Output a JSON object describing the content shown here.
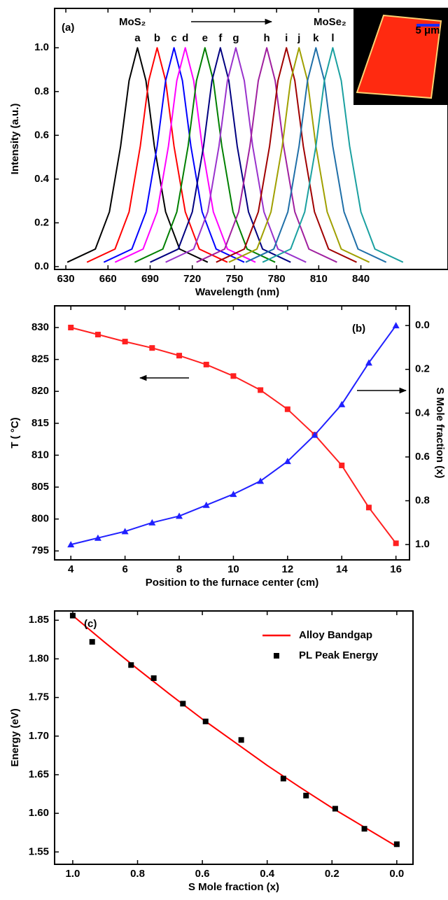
{
  "chart_data": [
    {
      "type": "line",
      "xlabel": "Wavelength (nm)",
      "ylabel": "Intensity (a.u.)",
      "xlim": [
        622,
        902
      ],
      "xticks": [
        630,
        660,
        690,
        720,
        750,
        780,
        810,
        840
      ],
      "ylim": [
        -0.013,
        1.18
      ],
      "yticks": [
        {
          "value": 0,
          "label": "0.0"
        },
        0.2,
        0.4,
        0.6,
        0.8,
        {
          "value": 1,
          "label": "1.0"
        }
      ],
      "annotations": [
        "(a)",
        "MoS₂",
        "MoSe₂"
      ],
      "inset_label": "5 μm",
      "series": [
        {
          "name": "a",
          "color": "#000000",
          "x": [
            631,
            651,
            661,
            669,
            675,
            681,
            687,
            693,
            701,
            711,
            731
          ],
          "values": [
            0.02,
            0.08,
            0.25,
            0.55,
            0.85,
            1.0,
            0.85,
            0.55,
            0.25,
            0.08,
            0.02
          ]
        },
        {
          "name": "b",
          "color": "#ff0000",
          "x": [
            645,
            665,
            675,
            683,
            689,
            695,
            701,
            707,
            715,
            725,
            745
          ],
          "values": [
            0.02,
            0.08,
            0.25,
            0.55,
            0.85,
            1.0,
            0.85,
            0.55,
            0.25,
            0.08,
            0.02
          ]
        },
        {
          "name": "c",
          "color": "#0000ff",
          "x": [
            657,
            677,
            687,
            695,
            701,
            707,
            713,
            719,
            727,
            737,
            757
          ],
          "values": [
            0.02,
            0.08,
            0.25,
            0.55,
            0.85,
            1.0,
            0.85,
            0.55,
            0.25,
            0.08,
            0.02
          ]
        },
        {
          "name": "d",
          "color": "#ff00ff",
          "x": [
            665,
            685,
            695,
            703,
            709,
            715,
            721,
            727,
            735,
            745,
            765
          ],
          "values": [
            0.02,
            0.08,
            0.25,
            0.55,
            0.85,
            1.0,
            0.85,
            0.55,
            0.25,
            0.08,
            0.02
          ]
        },
        {
          "name": "e",
          "color": "#008000",
          "x": [
            679,
            699,
            709,
            717,
            723,
            729,
            735,
            741,
            749,
            759,
            779
          ],
          "values": [
            0.02,
            0.08,
            0.25,
            0.55,
            0.85,
            1.0,
            0.85,
            0.55,
            0.25,
            0.08,
            0.02
          ]
        },
        {
          "name": "f",
          "color": "#000080",
          "x": [
            690,
            710,
            720,
            728,
            734,
            740,
            746,
            752,
            760,
            770,
            790
          ],
          "values": [
            0.02,
            0.08,
            0.25,
            0.55,
            0.85,
            1.0,
            0.85,
            0.55,
            0.25,
            0.08,
            0.02
          ]
        },
        {
          "name": "g",
          "color": "#9932cc",
          "x": [
            701,
            721,
            731,
            739,
            745,
            751,
            757,
            763,
            771,
            781,
            801
          ],
          "values": [
            0.02,
            0.08,
            0.25,
            0.55,
            0.85,
            1.0,
            0.85,
            0.55,
            0.25,
            0.08,
            0.02
          ]
        },
        {
          "name": "h",
          "color": "#a0209f",
          "x": [
            723,
            743,
            753,
            761,
            767,
            773,
            779,
            785,
            793,
            803,
            823
          ],
          "values": [
            0.02,
            0.08,
            0.25,
            0.55,
            0.85,
            1.0,
            0.85,
            0.55,
            0.25,
            0.08,
            0.02
          ]
        },
        {
          "name": "i",
          "color": "#a00000",
          "x": [
            737,
            757,
            767,
            775,
            781,
            787,
            793,
            799,
            807,
            817,
            837
          ],
          "values": [
            0.02,
            0.08,
            0.25,
            0.55,
            0.85,
            1.0,
            0.85,
            0.55,
            0.25,
            0.08,
            0.02
          ]
        },
        {
          "name": "j",
          "color": "#a0a000",
          "x": [
            746,
            766,
            776,
            784,
            790,
            796,
            802,
            808,
            816,
            826,
            846
          ],
          "values": [
            0.02,
            0.08,
            0.25,
            0.55,
            0.85,
            1.0,
            0.85,
            0.55,
            0.25,
            0.08,
            0.02
          ]
        },
        {
          "name": "k",
          "color": "#1f6fa8",
          "x": [
            758,
            778,
            788,
            796,
            802,
            808,
            814,
            820,
            828,
            838,
            858
          ],
          "values": [
            0.02,
            0.08,
            0.25,
            0.55,
            0.85,
            1.0,
            0.85,
            0.55,
            0.25,
            0.08,
            0.02
          ]
        },
        {
          "name": "l",
          "color": "#1aa0a0",
          "x": [
            770,
            790,
            800,
            808,
            814,
            820,
            826,
            832,
            840,
            850,
            870
          ],
          "values": [
            0.02,
            0.08,
            0.25,
            0.55,
            0.85,
            1.0,
            0.85,
            0.55,
            0.25,
            0.08,
            0.02
          ]
        }
      ]
    },
    {
      "type": "line",
      "xlabel": "Position to the furnace center (cm)",
      "ylabel": "T ( °C)",
      "y2label": "S Mole fraction (x)",
      "x": [
        4,
        5,
        6,
        7,
        8,
        9,
        10,
        11,
        12,
        13,
        14,
        15,
        16
      ],
      "xlim": [
        3.4,
        16.5
      ],
      "xticks": [
        4,
        6,
        8,
        10,
        12,
        14,
        16
      ],
      "ylim": [
        793.6,
        833.4
      ],
      "yticks": [
        795,
        800,
        805,
        810,
        815,
        820,
        825,
        830
      ],
      "y2lim": [
        1.07,
        -0.09
      ],
      "y2ticks": [
        {
          "value": 0,
          "label": "0.0"
        },
        0.2,
        0.4,
        0.6,
        0.8,
        {
          "value": 1,
          "label": "1.0"
        }
      ],
      "annotations": [
        "(b)"
      ],
      "series": [
        {
          "color": "#ff2020",
          "marker": "square",
          "values": [
            830,
            828.9,
            827.8,
            826.8,
            825.6,
            824.2,
            822.4,
            820.2,
            817.2,
            813.2,
            808.4,
            801.8,
            796.2
          ]
        },
        {
          "color": "#2020ff",
          "marker": "triangle",
          "axis": "y2",
          "values": [
            1.0,
            0.97,
            0.94,
            0.9,
            0.87,
            0.82,
            0.77,
            0.71,
            0.62,
            0.5,
            0.36,
            0.17,
            0.0
          ]
        }
      ]
    },
    {
      "type": "line",
      "xlabel": "S Mole fraction  (x)",
      "ylabel": "Energy (eV)",
      "xlim": [
        1.056,
        -0.05
      ],
      "xticks": [
        {
          "value": 1,
          "label": "1.0"
        },
        0.8,
        0.6,
        0.4,
        0.2,
        {
          "value": 0,
          "label": "0.0"
        }
      ],
      "ylim": [
        1.534,
        1.862
      ],
      "yticks": [
        1.55,
        {
          "value": 1.6,
          "label": "1.60"
        },
        1.65,
        {
          "value": 1.7,
          "label": "1.70"
        },
        1.75,
        {
          "value": 1.8,
          "label": "1.80"
        },
        1.85
      ],
      "annotations": [
        "(c)"
      ],
      "legend": "upper right",
      "series": [
        {
          "name": "Alloy Bandgap",
          "color": "#ff0000",
          "x": [
            1.0,
            0.9,
            0.8,
            0.7,
            0.6,
            0.5,
            0.4,
            0.3,
            0.2,
            0.1,
            0.0
          ],
          "values": [
            1.856,
            1.821,
            1.787,
            1.754,
            1.722,
            1.692,
            1.662,
            1.634,
            1.607,
            1.582,
            1.557
          ]
        },
        {
          "name": "PL Peak Energy",
          "color": "#000000",
          "marker": "square",
          "line": false,
          "x": [
            1.0,
            0.94,
            0.82,
            0.75,
            0.66,
            0.59,
            0.48,
            0.35,
            0.28,
            0.19,
            0.1,
            0.0
          ],
          "values": [
            1.856,
            1.822,
            1.792,
            1.775,
            1.742,
            1.719,
            1.695,
            1.645,
            1.623,
            1.606,
            1.58,
            1.56
          ]
        }
      ]
    }
  ]
}
